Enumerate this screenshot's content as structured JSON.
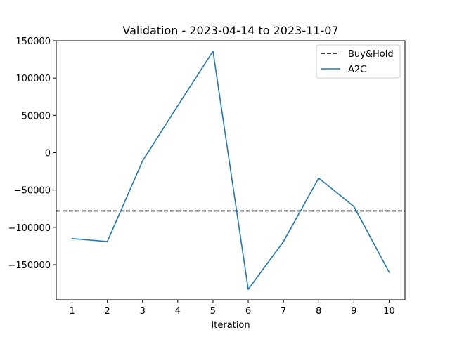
{
  "chart_data": {
    "type": "line",
    "title": "Validation - 2023-04-14 to 2023-11-07",
    "xlabel": "Iteration",
    "ylabel": "",
    "x": [
      1,
      2,
      3,
      4,
      5,
      6,
      7,
      8,
      9,
      10
    ],
    "xlim": [
      0.55,
      10.45
    ],
    "ylim": [
      -197000,
      150000
    ],
    "yticks": [
      -150000,
      -100000,
      -50000,
      0,
      50000,
      100000,
      150000
    ],
    "ytick_labels": [
      "−150000",
      "−100000",
      "−50000",
      "0",
      "50000",
      "100000",
      "150000"
    ],
    "xtick_labels": [
      "1",
      "2",
      "3",
      "4",
      "5",
      "6",
      "7",
      "8",
      "9",
      "10"
    ],
    "grid": false,
    "legend_position": "top-right",
    "series": [
      {
        "name": "A2C",
        "values": [
          -115000,
          -119000,
          -11000,
          63000,
          136000,
          -183000,
          -119000,
          -34000,
          -72000,
          -160000
        ],
        "color": "#1f77b4",
        "style": "solid"
      }
    ],
    "reference_lines": [
      {
        "name": "Buy&Hold",
        "value": -78000,
        "color": "#000000",
        "style": "dashed"
      }
    ],
    "legend_entries": [
      "Buy&Hold",
      "A2C"
    ]
  }
}
